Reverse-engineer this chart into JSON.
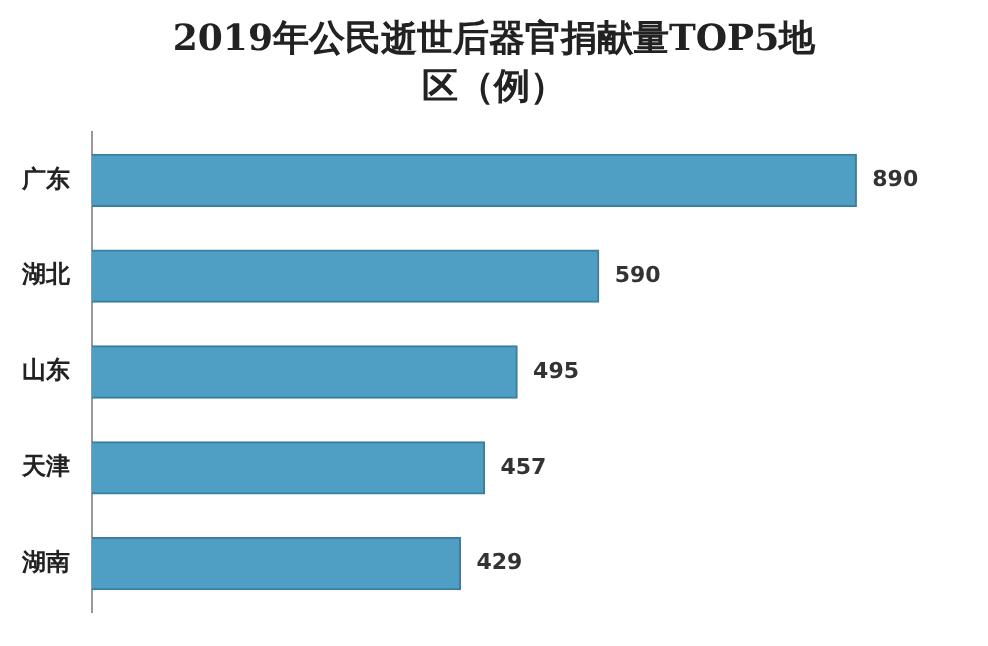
{
  "chart_data": {
    "type": "bar",
    "orientation": "horizontal",
    "title": "2019年公民逝世后器官捐献量TOP5地区（例）",
    "categories": [
      "广东",
      "湖北",
      "山东",
      "天津",
      "湖南"
    ],
    "values": [
      890,
      590,
      495,
      457,
      429
    ],
    "color": "#4f9fc4",
    "data_labels": true,
    "grid": false,
    "legend": false
  }
}
